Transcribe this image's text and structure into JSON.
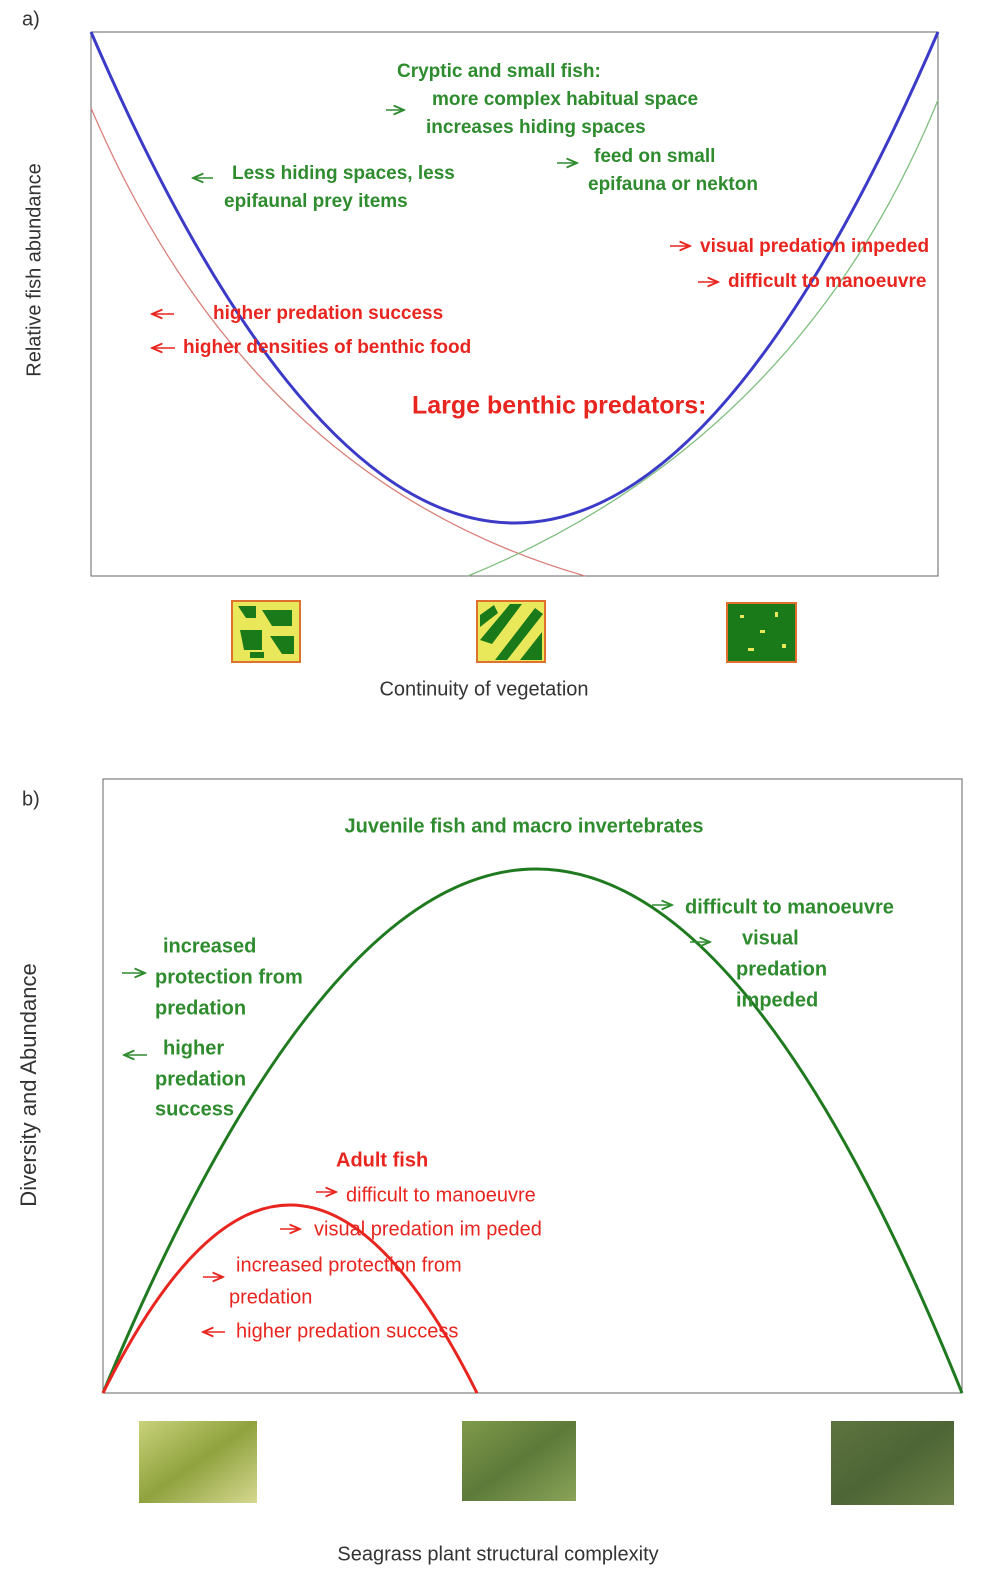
{
  "panel_a": {
    "label": "a)",
    "y_axis_label": "Relative fish abundance",
    "x_axis_label": "Continuity of vegetation",
    "green_notes": [
      "Cryptic and small fish:",
      "more complex habitual space",
      "increases hiding spaces",
      "feed on small",
      "epifauna or nekton",
      "Less hiding spaces, less",
      "epifaunal prey items"
    ],
    "red_notes": [
      "visual predation impeded",
      "difficult to manoeuvre",
      "higher predation success",
      "higher densities of benthic food"
    ],
    "red_heading": "Large benthic predators:"
  },
  "panel_b": {
    "label": "b)",
    "y_axis_label": "Diversity and Abundance",
    "x_axis_label": "Seagrass plant structural complexity",
    "green_heading": "Juvenile fish and macro invertebrates",
    "green_notes": [
      "difficult to manoeuvre",
      "visual",
      "predation",
      "impeded",
      "increased",
      "protection from",
      "predation",
      "higher",
      "predation",
      "success"
    ],
    "red_heading": "Adult fish",
    "red_notes": [
      "difficult to manoeuvre",
      "visual predation im peded",
      "increased protection from",
      "predation",
      "higher predation success"
    ]
  }
}
